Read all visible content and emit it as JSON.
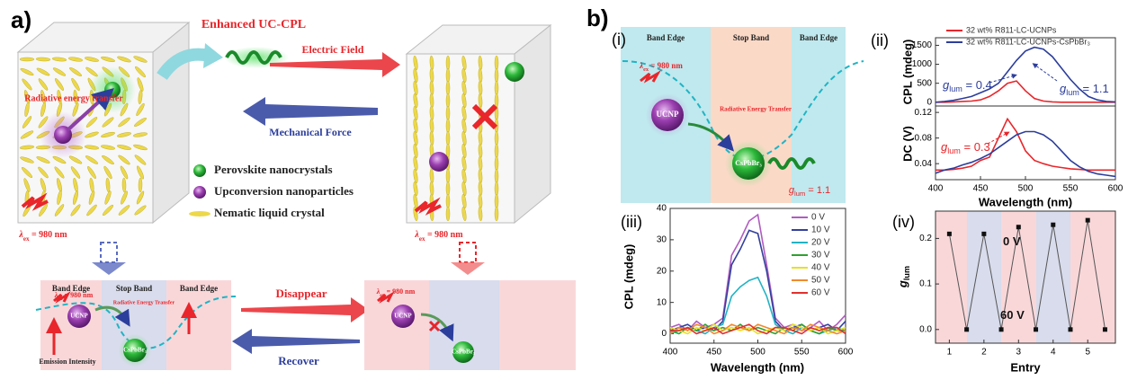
{
  "figure": {
    "panel_a": {
      "label": "a)",
      "enhanced": "Enhanced UC-CPL",
      "electric_field": "Electric Field",
      "mechanical_force": "Mechanical Force",
      "radiative_top": "Radiative energy transfer",
      "excitation": {
        "symbol": "λ",
        "sub": "ex",
        "text": " = 980 nm"
      },
      "legend": [
        "Perovskite nanocrystals",
        "Upconversion nanoparticles",
        "Nematic liquid crystal"
      ],
      "band_labels": [
        "Band Edge",
        "Stop Band",
        "Band Edge"
      ],
      "radiative_bottom": "Radiative Energy Transfer",
      "ucnp": "UCNP",
      "perovskite": "CsPbBr₃",
      "emission": "Emission Intensity",
      "disappear": "Disappear",
      "recover": "Recover"
    },
    "panel_b": {
      "label": "b)",
      "sub_label": "(i)",
      "band_labels": [
        "Band Edge",
        "Stop Band",
        "Band Edge"
      ],
      "radiative": "Radiative Energy Transfer",
      "ucnp": "UCNP",
      "perovskite": "CsPbBr₃",
      "excitation": {
        "symbol": "λ",
        "sub": "ex",
        "text": " = 980 nm"
      },
      "glum": {
        "symbol": "g",
        "sub": "lum",
        "text": " = 1.1"
      }
    }
  },
  "chart_data": [
    {
      "type": "line",
      "panel_label": "(ii)",
      "ylabel": "CPL (mdeg)",
      "x": [
        400,
        410,
        420,
        430,
        440,
        450,
        460,
        470,
        480,
        490,
        500,
        510,
        520,
        530,
        540,
        550,
        560,
        570,
        580,
        590,
        600
      ],
      "xlim": [
        400,
        600
      ],
      "ylim": [
        -100,
        1700
      ],
      "yticks": [
        0,
        500,
        1000,
        1500
      ],
      "legend": "upper left",
      "series": [
        {
          "name": "32 wt% R811-LC-UCNPs",
          "color": "#e8262b",
          "values": [
            0,
            0,
            10,
            20,
            30,
            60,
            150,
            300,
            500,
            560,
            300,
            100,
            30,
            10,
            0,
            0,
            0,
            0,
            0,
            0,
            0
          ]
        },
        {
          "name": "32 wt% R811-LC-UCNPs-CsPbBr₃",
          "color": "#2c3e9c",
          "values": [
            0,
            20,
            50,
            100,
            150,
            250,
            350,
            500,
            800,
            1100,
            1350,
            1450,
            1400,
            1200,
            900,
            600,
            350,
            150,
            60,
            20,
            10
          ]
        }
      ],
      "annotations": [
        {
          "symbol": "g",
          "sub": "lum",
          "text": " = 0.4",
          "color": "#2c3e9c"
        },
        {
          "symbol": "g",
          "sub": "lum",
          "text": " = 1.1",
          "color": "#2c3e9c"
        }
      ]
    },
    {
      "type": "line",
      "ylabel": "DC (V)",
      "xlabel": "Wavelength (nm)",
      "x": [
        400,
        410,
        420,
        430,
        440,
        450,
        460,
        470,
        480,
        490,
        500,
        510,
        520,
        530,
        540,
        550,
        560,
        570,
        580,
        590,
        600
      ],
      "xlim": [
        400,
        600
      ],
      "ylim": [
        0.015,
        0.13
      ],
      "xticks": [
        400,
        450,
        500,
        550,
        600
      ],
      "yticks": [
        0.04,
        0.08,
        0.12
      ],
      "series": [
        {
          "color": "#e8262b",
          "values": [
            0.03,
            0.03,
            0.031,
            0.033,
            0.036,
            0.045,
            0.05,
            0.08,
            0.11,
            0.09,
            0.06,
            0.045,
            0.04,
            0.036,
            0.034,
            0.032,
            0.031,
            0.03,
            0.03,
            0.03,
            0.03
          ]
        },
        {
          "color": "#2c3e9c",
          "values": [
            0.025,
            0.03,
            0.033,
            0.038,
            0.042,
            0.048,
            0.055,
            0.065,
            0.075,
            0.085,
            0.09,
            0.09,
            0.085,
            0.075,
            0.06,
            0.045,
            0.035,
            0.028,
            0.024,
            0.022,
            0.02
          ]
        }
      ],
      "annotations": [
        {
          "symbol": "g",
          "sub": "lum",
          "text": " = 0.3",
          "color": "#e8262b"
        }
      ]
    },
    {
      "type": "line",
      "panel_label": "(iii)",
      "ylabel": "CPL (mdeg)",
      "xlabel": "Wavelength (nm)",
      "x": [
        400,
        410,
        420,
        430,
        440,
        450,
        460,
        470,
        480,
        490,
        500,
        510,
        520,
        530,
        540,
        550,
        560,
        570,
        580,
        590,
        600
      ],
      "xlim": [
        400,
        600
      ],
      "ylim": [
        -3,
        40
      ],
      "xticks": [
        400,
        450,
        500,
        550,
        600
      ],
      "yticks": [
        0,
        10,
        20,
        30,
        40
      ],
      "legend": "upper right",
      "series": [
        {
          "name": "0 V",
          "color": "#b05cc0",
          "values": [
            2,
            3,
            1,
            4,
            2,
            3,
            5,
            25,
            30,
            36,
            38,
            22,
            5,
            2,
            3,
            1,
            2,
            4,
            1,
            3,
            6
          ]
        },
        {
          "name": "10 V",
          "color": "#33409e",
          "values": [
            1,
            2,
            3,
            1,
            2,
            1,
            4,
            22,
            27,
            33,
            32,
            20,
            4,
            1,
            2,
            3,
            1,
            2,
            3,
            1,
            4
          ]
        },
        {
          "name": "20 V",
          "color": "#22b3c4",
          "values": [
            0,
            1,
            2,
            1,
            0,
            2,
            3,
            12,
            15,
            17,
            18,
            12,
            3,
            1,
            0,
            2,
            1,
            0,
            1,
            2,
            1
          ]
        },
        {
          "name": "30 V",
          "color": "#2fa02f",
          "values": [
            1,
            0,
            2,
            1,
            3,
            1,
            2,
            1,
            3,
            1,
            2,
            1,
            0,
            2,
            1,
            3,
            1,
            0,
            2,
            1,
            1
          ]
        },
        {
          "name": "40 V",
          "color": "#e6e02a",
          "values": [
            2,
            1,
            0,
            2,
            1,
            3,
            1,
            2,
            1,
            2,
            0,
            1,
            2,
            1,
            3,
            2,
            1,
            2,
            0,
            1,
            2
          ]
        },
        {
          "name": "50 V",
          "color": "#f08a2e",
          "values": [
            0,
            2,
            1,
            3,
            2,
            0,
            1,
            3,
            2,
            1,
            3,
            2,
            1,
            0,
            2,
            1,
            3,
            2,
            1,
            0,
            1
          ]
        },
        {
          "name": "60 V",
          "color": "#e2302e",
          "values": [
            1,
            1,
            2,
            0,
            1,
            2,
            0,
            1,
            2,
            3,
            1,
            0,
            2,
            2,
            1,
            0,
            2,
            1,
            2,
            2,
            0
          ]
        }
      ]
    },
    {
      "type": "line",
      "panel_label": "(iv)",
      "ylabel": {
        "symbol": "g",
        "sub": "lum"
      },
      "xlabel": "Entry",
      "markers": true,
      "x": [
        1,
        1.5,
        2,
        2.5,
        3,
        3.5,
        4,
        4.5,
        5,
        5.5
      ],
      "xlim": [
        0.6,
        5.8
      ],
      "ylim": [
        -0.03,
        0.26
      ],
      "xticks": [
        1,
        2,
        3,
        4,
        5
      ],
      "yticks": [
        {
          "value": 0,
          "label": "0.0"
        },
        0.1,
        0.2
      ],
      "series": [
        {
          "color": "#555555",
          "values": [
            0.21,
            0,
            0.21,
            0,
            0.225,
            0,
            0.23,
            0,
            0.24,
            0
          ]
        }
      ],
      "annotations": [
        {
          "text": "0 V"
        },
        {
          "text": "60 V"
        }
      ]
    }
  ]
}
